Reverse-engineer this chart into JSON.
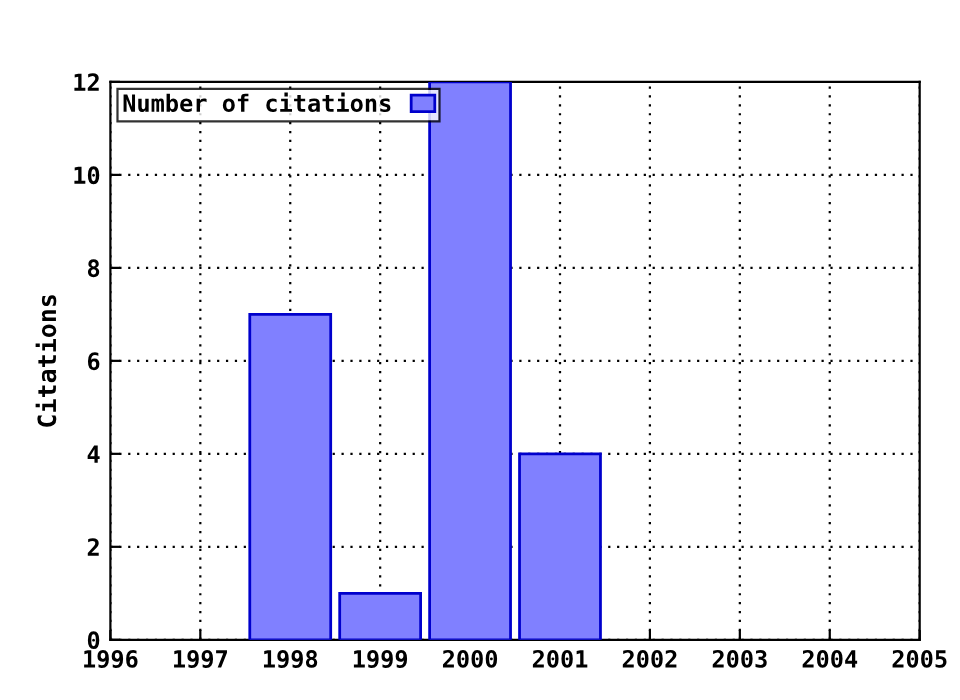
{
  "chart_data": {
    "type": "bar",
    "ylabel": "Citations",
    "x": [
      1998,
      1999,
      2000,
      2001
    ],
    "series": [
      {
        "name": "Number of citations",
        "color": "#8080ff",
        "values": [
          7,
          1,
          12,
          4
        ]
      }
    ],
    "xlim": [
      1996,
      2005
    ],
    "xticks": [
      1996,
      1997,
      1998,
      1999,
      2000,
      2001,
      2002,
      2003,
      2004,
      2005
    ],
    "ylim": [
      0,
      12
    ],
    "yticks": [
      0,
      2,
      4,
      6,
      8,
      10,
      12
    ],
    "grid": true,
    "legend": "top left"
  }
}
